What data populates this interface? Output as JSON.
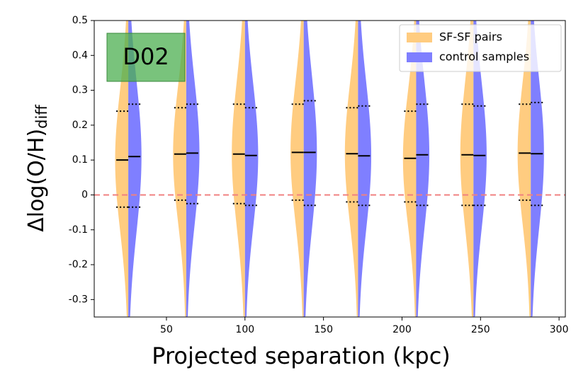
{
  "chart_data": {
    "type": "split-violin",
    "xlabel": "Projected separation (kpc)",
    "ylabel": "Δlog(O/H)",
    "ylabel_sub": "diff",
    "annotation": "D02",
    "xlim": [
      4,
      304
    ],
    "ylim": [
      -0.35,
      0.5
    ],
    "xticks": [
      50,
      100,
      150,
      200,
      250,
      300
    ],
    "yticks": [
      -0.3,
      -0.2,
      -0.1,
      0.0,
      0.1,
      0.2,
      0.3,
      0.4,
      0.5
    ],
    "hline": 0.0,
    "hline_color": "#f08080",
    "legend": "upper right",
    "x": [
      25.7,
      62.6,
      100,
      137.4,
      172,
      209,
      245.5,
      282
    ],
    "series": [
      {
        "name": "SF-SF pairs",
        "color": "#ffcc80",
        "side": "left",
        "median": [
          0.1,
          0.117,
          0.117,
          0.122,
          0.118,
          0.105,
          0.115,
          0.12
        ],
        "q1": [
          -0.035,
          -0.015,
          -0.025,
          -0.015,
          -0.02,
          -0.02,
          -0.03,
          -0.015
        ],
        "q3": [
          0.24,
          0.25,
          0.26,
          0.26,
          0.25,
          0.24,
          0.26,
          0.26
        ]
      },
      {
        "name": "control samples",
        "color": "#7f7fff",
        "side": "right",
        "median": [
          0.11,
          0.12,
          0.113,
          0.122,
          0.112,
          0.115,
          0.113,
          0.118
        ],
        "q1": [
          -0.035,
          -0.025,
          -0.03,
          -0.03,
          -0.03,
          -0.03,
          -0.03,
          -0.03
        ],
        "q3": [
          0.26,
          0.26,
          0.25,
          0.27,
          0.255,
          0.26,
          0.255,
          0.265
        ]
      }
    ]
  }
}
